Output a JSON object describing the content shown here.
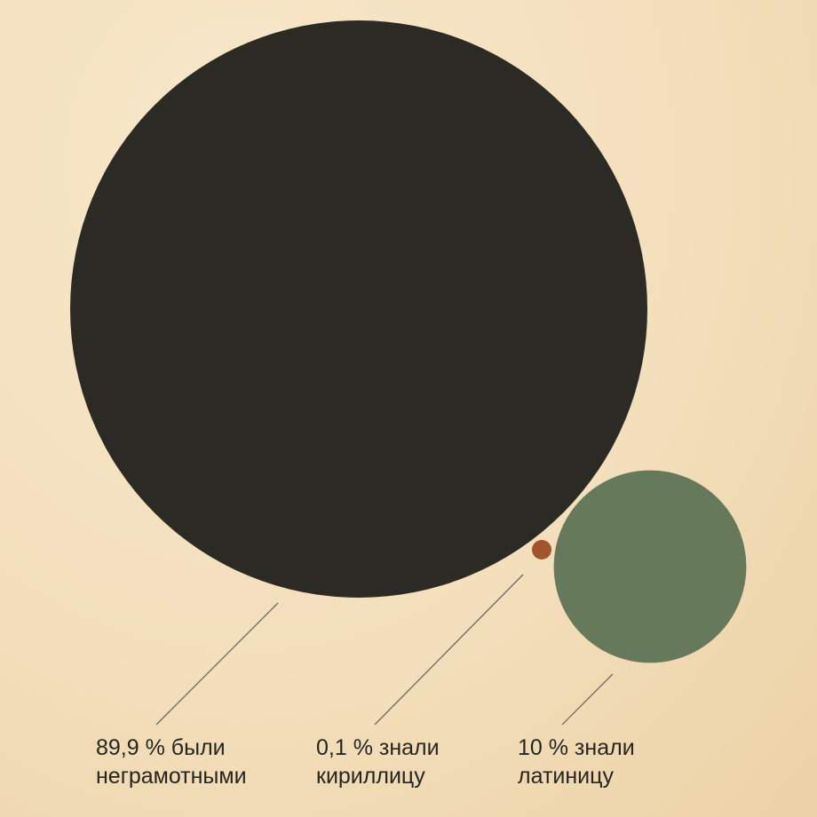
{
  "chart_data": {
    "type": "bubble",
    "title": "",
    "items": [
      {
        "value": 89.9,
        "line1": "89,9 % были",
        "line2": "неграмотными",
        "color": "#2c2a24"
      },
      {
        "value": 0.1,
        "line1": "0,1 % знали",
        "line2": "кириллицу",
        "color": "#a4532f"
      },
      {
        "value": 10,
        "line1": "10 % знали",
        "line2": "латиницу",
        "color": "#66795a"
      }
    ]
  },
  "colors": {
    "background": "#f3dfbc",
    "leader_line": "#6b6a62",
    "text": "#26251f"
  }
}
